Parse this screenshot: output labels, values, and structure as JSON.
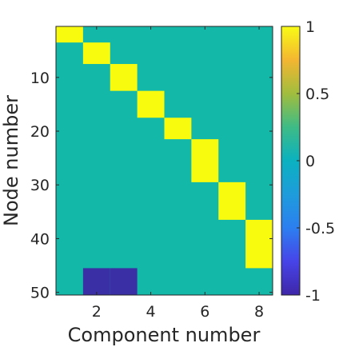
{
  "chart_data": {
    "type": "heatmap",
    "xlabel": "Component number",
    "ylabel": "Node number",
    "x_range": [
      0.5,
      8.5
    ],
    "y_range": [
      0.5,
      50.5
    ],
    "y_reversed": true,
    "xticks": [
      2,
      4,
      6,
      8
    ],
    "yticks": [
      10,
      20,
      30,
      40,
      50
    ],
    "colorbar": {
      "colormap": "parula",
      "clim": [
        -1,
        1
      ],
      "ticks": [
        1,
        0.5,
        0,
        -0.5,
        -1
      ],
      "tick_labels": [
        "1",
        "0.5",
        "0",
        "-0.5",
        "-1"
      ]
    },
    "background_value": 0,
    "cells": [
      {
        "component": 1,
        "nodes": [
          1,
          3
        ],
        "value": 1
      },
      {
        "component": 2,
        "nodes": [
          4,
          7
        ],
        "value": 1
      },
      {
        "component": 3,
        "nodes": [
          8,
          12
        ],
        "value": 1
      },
      {
        "component": 4,
        "nodes": [
          13,
          17
        ],
        "value": 1
      },
      {
        "component": 5,
        "nodes": [
          18,
          21
        ],
        "value": 1
      },
      {
        "component": 6,
        "nodes": [
          22,
          29
        ],
        "value": 1
      },
      {
        "component": 7,
        "nodes": [
          30,
          36
        ],
        "value": 1
      },
      {
        "component": 8,
        "nodes": [
          37,
          45
        ],
        "value": 1
      },
      {
        "component": 2,
        "nodes": [
          46,
          50
        ],
        "value": -1
      },
      {
        "component": 3,
        "nodes": [
          46,
          50
        ],
        "value": -1
      }
    ],
    "colors": {
      "background": "#13b8a9",
      "positive": "#f9fb0e",
      "negative": "#3a2fa5",
      "axis": "#262626"
    }
  }
}
